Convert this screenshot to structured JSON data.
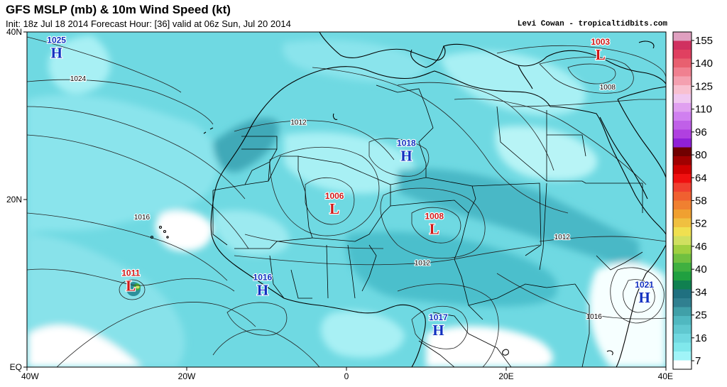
{
  "header": {
    "title": "GFS MSLP (mb) & 10m Wind Speed (kt)",
    "subtitle": "Init: 18z Jul 18 2014 Forecast Hour: [36] valid at 06z Sun, Jul 20 2014",
    "credit": "Levi Cowan - tropicaltidbits.com"
  },
  "axes": {
    "y_ticks": [
      {
        "label": "40N",
        "lat": 40
      },
      {
        "label": "20N",
        "lat": 20
      },
      {
        "label": "EQ",
        "lat": 0
      }
    ],
    "x_ticks": [
      {
        "label": "40W",
        "lon": -40
      },
      {
        "label": "20W",
        "lon": -20
      },
      {
        "label": "0",
        "lon": 0
      },
      {
        "label": "20E",
        "lon": 20
      },
      {
        "label": "40E",
        "lon": 40
      }
    ],
    "lon_range": [
      -40,
      40
    ],
    "lat_range": [
      0,
      40
    ]
  },
  "pressure_centers": [
    {
      "type": "H",
      "value": "1025",
      "lon": -36.3,
      "lat": 37.5
    },
    {
      "type": "H",
      "value": "1018",
      "lon": 7.5,
      "lat": 25.2
    },
    {
      "type": "H",
      "value": "1016",
      "lon": -10.5,
      "lat": 9.2
    },
    {
      "type": "H",
      "value": "1017",
      "lon": 11.5,
      "lat": 4.4
    },
    {
      "type": "H",
      "value": "1021",
      "lon": 37.3,
      "lat": 8.3
    },
    {
      "type": "L",
      "value": "1003",
      "lon": 31.8,
      "lat": 37.3
    },
    {
      "type": "L",
      "value": "1006",
      "lon": -1.5,
      "lat": 18.9
    },
    {
      "type": "L",
      "value": "1008",
      "lon": 11.0,
      "lat": 16.5
    },
    {
      "type": "L",
      "value": "1011",
      "lon": -27.0,
      "lat": 9.7
    }
  ],
  "isobar_labels": [
    {
      "label": "1024",
      "lon": -33.6,
      "lat": 34.4
    },
    {
      "label": "1012",
      "lon": -6.0,
      "lat": 29.2
    },
    {
      "label": "1016",
      "lon": -25.6,
      "lat": 17.9
    },
    {
      "label": "1012",
      "lon": 9.5,
      "lat": 12.4
    },
    {
      "label": "1012",
      "lon": 27.0,
      "lat": 15.5
    },
    {
      "label": "1008",
      "lon": 32.7,
      "lat": 33.4
    },
    {
      "label": "1016",
      "lon": 31.0,
      "lat": 6.0
    }
  ],
  "colorbar": {
    "title": "10m Wind Speed (kt)",
    "ticks": [
      "155",
      "140",
      "125",
      "110",
      "96",
      "80",
      "64",
      "58",
      "52",
      "46",
      "40",
      "34",
      "25",
      "16",
      "7"
    ],
    "colors": [
      "#e0a0c0",
      "#d03060",
      "#e04060",
      "#e86070",
      "#f08090",
      "#f4a0b0",
      "#f8c0d0",
      "#f0c8f0",
      "#e0a0f0",
      "#d080f0",
      "#c060e8",
      "#b040e0",
      "#9020d8",
      "#700000",
      "#a00000",
      "#d00000",
      "#f01010",
      "#f04030",
      "#f06030",
      "#f08030",
      "#f0a030",
      "#f0c040",
      "#f0e050",
      "#d0e060",
      "#a0d040",
      "#70c040",
      "#40b040",
      "#20a040",
      "#108050",
      "#207080",
      "#308090",
      "#40a0a8",
      "#50b8c0",
      "#60c8d0",
      "#70d8e0",
      "#80e8ec",
      "#a0f4f8",
      "#ffffff"
    ]
  }
}
